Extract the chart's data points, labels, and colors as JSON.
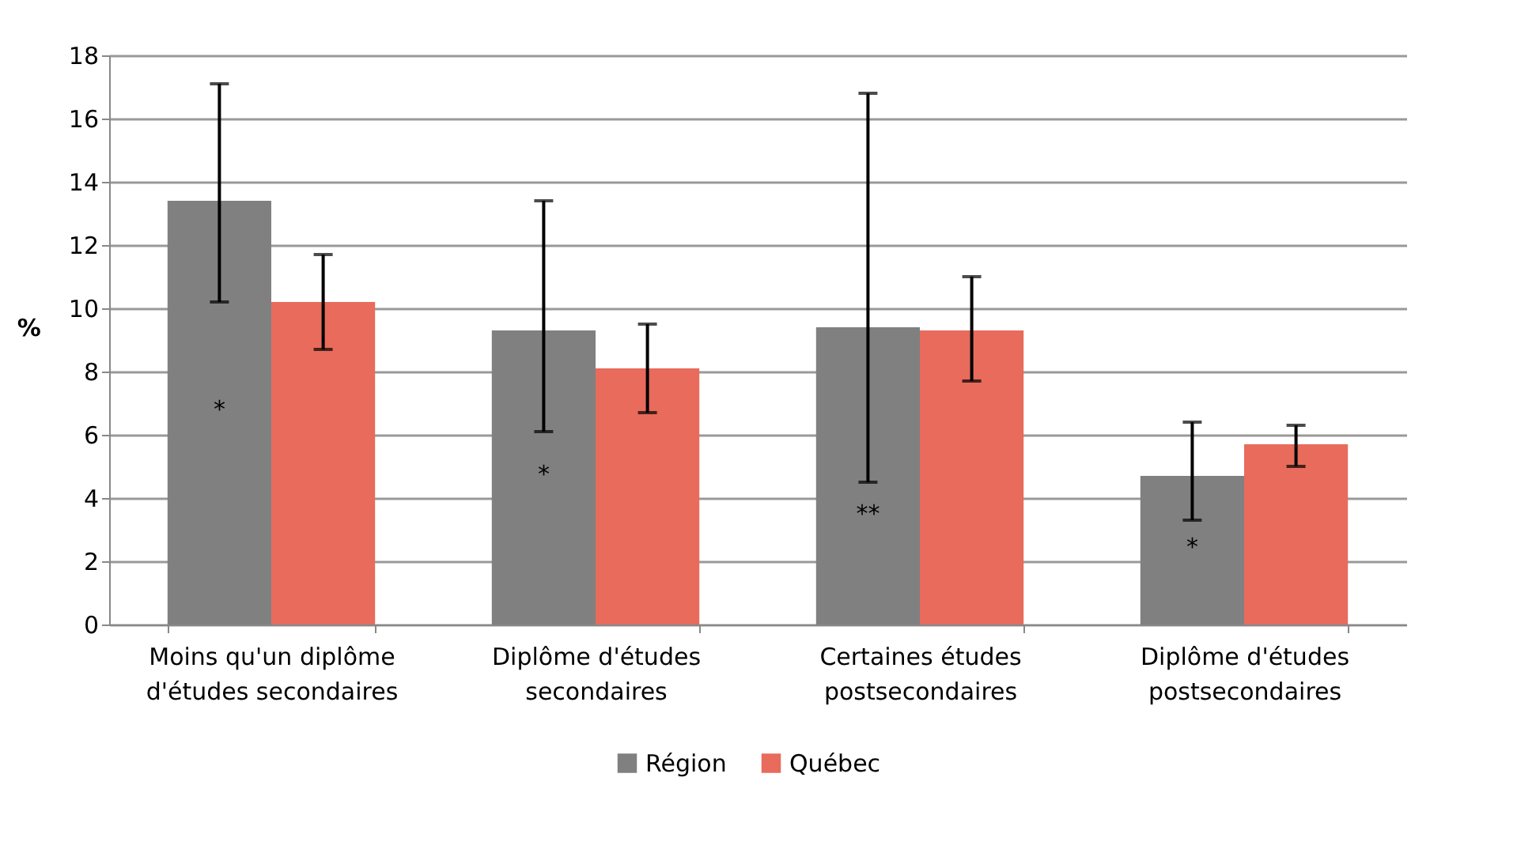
{
  "chart_data": {
    "type": "bar",
    "ylabel": "%",
    "categories": [
      "Moins qu'un diplôme d'études secondaires",
      "Diplôme d'études secondaires",
      "Certaines études postsecondaires",
      "Diplôme d'études postsecondaires"
    ],
    "series": [
      {
        "name": "Région",
        "color": "#808080",
        "values": [
          13.4,
          9.3,
          9.4,
          4.7
        ],
        "errors": [
          [
            10.2,
            17.1
          ],
          [
            6.1,
            13.4
          ],
          [
            4.5,
            16.8
          ],
          [
            3.3,
            6.4
          ]
        ]
      },
      {
        "name": "Québec",
        "color": "#e86b5c",
        "values": [
          10.2,
          8.1,
          9.3,
          5.7
        ],
        "errors": [
          [
            8.7,
            11.7
          ],
          [
            6.7,
            9.5
          ],
          [
            7.7,
            11.0
          ],
          [
            5.0,
            6.3
          ]
        ]
      }
    ],
    "annotations": [
      {
        "text": "*",
        "x": "Moins qu'un diplôme d'études secondaires",
        "y": 6.8
      },
      {
        "text": "*",
        "x": "Diplôme d'études secondaires",
        "y": 4.75
      },
      {
        "text": "**",
        "x": "Certaines études postsecondaires",
        "y": 3.5
      },
      {
        "text": "*",
        "x": "Diplôme d'études postsecondaires",
        "y": 2.45
      }
    ],
    "ylim": [
      0,
      18
    ],
    "yticks": [
      0,
      2,
      4,
      6,
      8,
      10,
      12,
      14,
      16,
      18
    ],
    "grid": "y",
    "legend": "bottom"
  }
}
